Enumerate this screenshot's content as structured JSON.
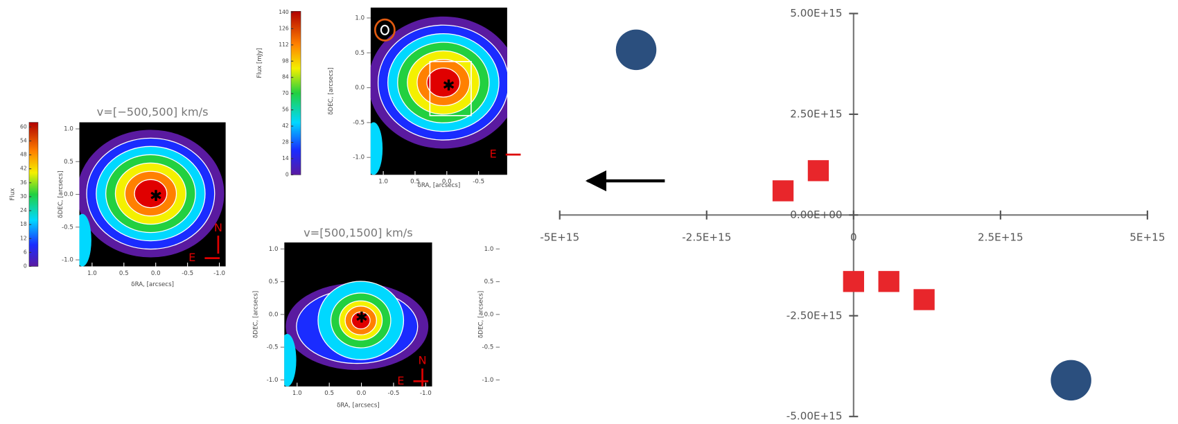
{
  "chart_data": [
    {
      "type": "map",
      "title": "v=[−500,500] km/s",
      "xlabel": "δRA, [arcsecs]",
      "ylabel": "δDEC, [arcsecs]",
      "xlim": [
        1.2,
        -1.1
      ],
      "ylim": [
        1.1,
        -1.1
      ],
      "xticks": [
        {
          "value": 1,
          "label": "1.0"
        },
        0.5,
        {
          "value": 0,
          "label": "0.0"
        },
        -0.5,
        {
          "value": -1,
          "label": "-1.0"
        }
      ],
      "yticks": [
        {
          "value": 1,
          "label": "1.0"
        },
        0.5,
        {
          "value": 0,
          "label": "0.0"
        },
        -0.5,
        {
          "value": -1,
          "label": "-1.0"
        }
      ],
      "colorbar": {
        "label": "Flux",
        "lim": [
          0,
          62
        ],
        "ticks": [
          0,
          6,
          12,
          18,
          24,
          30,
          36,
          42,
          48,
          54,
          60
        ]
      },
      "compass": [
        "N",
        "E"
      ]
    },
    {
      "type": "map",
      "xlabel": "δRA, [arcsecs]",
      "ylabel": "δDEC, [arcsecs]",
      "xlim": [
        1.2,
        -0.95
      ],
      "ylim": [
        1.15,
        -1.25
      ],
      "xticks": [
        {
          "value": 1,
          "label": "1.0"
        },
        0.5,
        {
          "value": 0,
          "label": "0.0"
        },
        -0.5
      ],
      "yticks": [
        {
          "value": 1,
          "label": "1.0"
        },
        0.5,
        {
          "value": 0,
          "label": "0.0"
        },
        -0.5,
        {
          "value": -1,
          "label": "-1.0"
        }
      ],
      "colorbar": {
        "label": "Flux [mJy]",
        "lim": [
          0,
          141
        ],
        "ticks": [
          0,
          14,
          28,
          42,
          56,
          70,
          84,
          98,
          112,
          126,
          140
        ]
      },
      "compass": [
        "E"
      ]
    },
    {
      "type": "map",
      "title": "v=[500,1500] km/s",
      "xlabel": "δRA, [arcsecs]",
      "ylabel": "δDEC, [arcsecs]",
      "xlim": [
        1.2,
        -1.1
      ],
      "ylim": [
        1.1,
        -1.1
      ],
      "xticks": [
        {
          "value": 1,
          "label": "1.0"
        },
        0.5,
        {
          "value": 0,
          "label": "0.0"
        },
        -0.5,
        {
          "value": -1,
          "label": "-1.0"
        }
      ],
      "yticks": [
        {
          "value": 1,
          "label": "1.0"
        },
        0.5,
        {
          "value": 0,
          "label": "0.0"
        },
        -0.5,
        {
          "value": -1,
          "label": "-1.0"
        }
      ],
      "compass": [
        "N",
        "E"
      ]
    },
    {
      "type": "axis",
      "ylabel": "δDEC, [arcsecs]",
      "ylim": [
        1.1,
        -1.1
      ],
      "yticks": [
        {
          "value": 1,
          "label": "1.0"
        },
        0.5,
        {
          "value": 0,
          "label": "0.0"
        },
        -0.5,
        {
          "value": -1,
          "label": "-1.0"
        }
      ]
    },
    {
      "type": "scatter",
      "xlim": [
        -5000000000000000.0,
        5000000000000000.0
      ],
      "ylim": [
        -5000000000000000.0,
        5000000000000000.0
      ],
      "xticks": [
        {
          "value": -5000000000000000.0,
          "label": "-5E+15"
        },
        {
          "value": -2500000000000000.0,
          "label": "-2.5E+15"
        },
        0,
        {
          "value": 2500000000000000.0,
          "label": "2.5E+15"
        },
        {
          "value": 5000000000000000.0,
          "label": "5E+15"
        }
      ],
      "yticks": [
        {
          "value": 5000000000000000.0,
          "label": "5.00E+15"
        },
        {
          "value": 2500000000000000.0,
          "label": "2.50E+15"
        },
        {
          "value": 0,
          "label": "0.00E+00"
        },
        {
          "value": -2500000000000000.0,
          "label": "-2.50E+15"
        },
        {
          "value": -5000000000000000.0,
          "label": "-5.00E+15"
        }
      ],
      "series": [
        {
          "color": "#2b4f7e",
          "marker": "circle",
          "x": [
            -3700000000000000.0,
            3700000000000000.0
          ],
          "values": [
            4100000000000000.0,
            -4100000000000000.0
          ]
        },
        {
          "color": "#e8262b",
          "marker": "square",
          "x": [
            -1200000000000000.0,
            -600000000000000.0,
            0,
            600000000000000.0,
            1200000000000000.0
          ],
          "values": [
            600000000000000.0,
            1100000000000000.0,
            -1650000000000000.0,
            -1650000000000000.0,
            -2100000000000000.0
          ]
        }
      ]
    }
  ]
}
